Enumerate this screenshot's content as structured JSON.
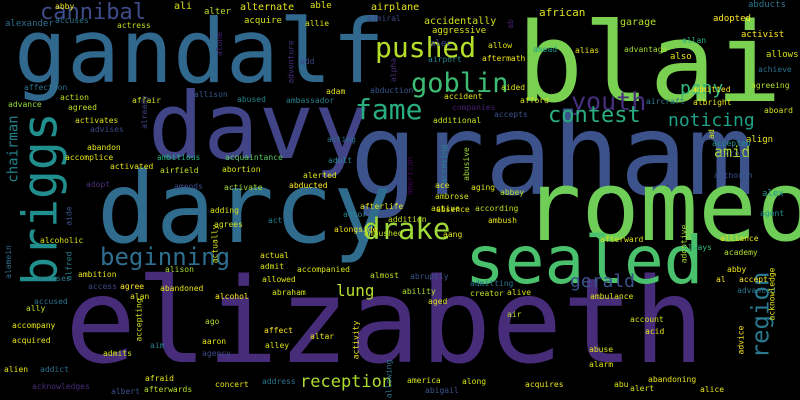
{
  "word_cloud": {
    "background": "#000000",
    "words": [
      {
        "text": "elizabeth",
        "color": "#472c7a"
      },
      {
        "text": "graham",
        "color": "#3b528b"
      },
      {
        "text": "gandalf",
        "color": "#31688e"
      },
      {
        "text": "blair",
        "color": "#7ad151"
      },
      {
        "text": "davy",
        "color": "#414487"
      },
      {
        "text": "darcy",
        "color": "#2f6c8e"
      },
      {
        "text": "romeo",
        "color": "#6ece58"
      },
      {
        "text": "sealed",
        "color": "#4ac16d"
      },
      {
        "text": "briggs",
        "color": "#218f8d"
      },
      {
        "text": "pushed",
        "color": "#b5de2b"
      },
      {
        "text": "fame",
        "color": "#29af7f"
      },
      {
        "text": "drake",
        "color": "#9fda3a"
      },
      {
        "text": "goblin",
        "color": "#3dbc74"
      },
      {
        "text": "youth",
        "color": "#46307e"
      },
      {
        "text": "contest",
        "color": "#2ab07f"
      },
      {
        "text": "beginning",
        "color": "#2e6e8e"
      },
      {
        "text": "region",
        "color": "#2a788e"
      },
      {
        "text": "cannibal",
        "color": "#3e4c8a"
      },
      {
        "text": "gerald",
        "color": "#3b528b"
      },
      {
        "text": "noticing",
        "color": "#1fa088"
      },
      {
        "text": "pony",
        "color": "#35b779"
      },
      {
        "text": "reception",
        "color": "#addc30"
      },
      {
        "text": "lung",
        "color": "#b5de2b"
      },
      {
        "text": "amid",
        "color": "#a8db34"
      },
      {
        "text": "chairman",
        "color": "#26828e"
      },
      {
        "text": "abby",
        "color": "#ece51b"
      },
      {
        "text": "alexander",
        "color": "#2d708e"
      },
      {
        "text": "ali",
        "color": "#d8e219"
      },
      {
        "text": "alter",
        "color": "#b8de29"
      },
      {
        "text": "alternate",
        "color": "#e5e419"
      },
      {
        "text": "able",
        "color": "#dde318"
      },
      {
        "text": "airplane",
        "color": "#e5e419"
      },
      {
        "text": "accidentally",
        "color": "#cde11d"
      },
      {
        "text": "african",
        "color": "#dde318"
      },
      {
        "text": "abducts",
        "color": "#2a768e"
      },
      {
        "text": "adopted",
        "color": "#fde725"
      },
      {
        "text": "activist",
        "color": "#fde725"
      },
      {
        "text": "allows",
        "color": "#d8e219"
      },
      {
        "text": "achieve",
        "color": "#2c728e"
      },
      {
        "text": "agreeing",
        "color": "#b5de2b"
      },
      {
        "text": "aboard",
        "color": "#d2e21b"
      },
      {
        "text": "align",
        "color": "#e5e419"
      },
      {
        "text": "alex",
        "color": "#1f988b"
      },
      {
        "text": "agent",
        "color": "#228d8d"
      },
      {
        "text": "actress",
        "color": "#bddf26"
      },
      {
        "text": "accuses",
        "color": "#2a778e"
      },
      {
        "text": "acquire",
        "color": "#d0e11c"
      },
      {
        "text": "admiral",
        "color": "#404688"
      },
      {
        "text": "aggressive",
        "color": "#d2e21b"
      },
      {
        "text": "alec",
        "color": "#3e4989"
      },
      {
        "text": "allow",
        "color": "#dde318"
      },
      {
        "text": "aftermath",
        "color": "#f1e51d"
      },
      {
        "text": "airport",
        "color": "#24868e"
      },
      {
        "text": "ahead",
        "color": "#1fa088"
      },
      {
        "text": "alias",
        "color": "#e5e419"
      },
      {
        "text": "advantage",
        "color": "#a0da39"
      },
      {
        "text": "garage",
        "color": "#b5de2b"
      },
      {
        "text": "also",
        "color": "#e7e419"
      },
      {
        "text": "allan",
        "color": "#29af7f"
      },
      {
        "text": "affection",
        "color": "#2c728e"
      },
      {
        "text": "action",
        "color": "#c2df23"
      },
      {
        "text": "advance",
        "color": "#95d840"
      },
      {
        "text": "agreed",
        "color": "#c2df23"
      },
      {
        "text": "activates",
        "color": "#d8e219"
      },
      {
        "text": "affair",
        "color": "#d2e21b"
      },
      {
        "text": "allison",
        "color": "#39568c"
      },
      {
        "text": "abused",
        "color": "#24868e"
      },
      {
        "text": "ambassador",
        "color": "#277f8e"
      },
      {
        "text": "adam",
        "color": "#e2e418"
      },
      {
        "text": "abduction",
        "color": "#39568c"
      },
      {
        "text": "accident",
        "color": "#dde318"
      },
      {
        "text": "companies",
        "color": "#481f70"
      },
      {
        "text": "additional",
        "color": "#c8e020"
      },
      {
        "text": "aided",
        "color": "#d8e219"
      },
      {
        "text": "accepts",
        "color": "#3a538b"
      },
      {
        "text": "afford",
        "color": "#d2e21b"
      },
      {
        "text": "admitted",
        "color": "#fde725"
      },
      {
        "text": "aircraft",
        "color": "#2a788e"
      },
      {
        "text": "albright",
        "color": "#e7e419"
      },
      {
        "text": "abandon",
        "color": "#e5e419"
      },
      {
        "text": "accomplice",
        "color": "#e5e419"
      },
      {
        "text": "advises",
        "color": "#3e4989"
      },
      {
        "text": "already",
        "color": "#414487"
      },
      {
        "text": "ambitious",
        "color": "#29af7f"
      },
      {
        "text": "acquaintance",
        "color": "#5ac864"
      },
      {
        "text": "acting",
        "color": "#2c718e"
      },
      {
        "text": "adult",
        "color": "#25858e"
      },
      {
        "text": "accepted",
        "color": "#20928c"
      },
      {
        "text": "across",
        "color": "#3e4989"
      },
      {
        "text": "although",
        "color": "#3b528b"
      },
      {
        "text": "activated",
        "color": "#e7e419"
      },
      {
        "text": "airfield",
        "color": "#bddf26"
      },
      {
        "text": "abortion",
        "color": "#d8e219"
      },
      {
        "text": "alerted",
        "color": "#d8e219"
      },
      {
        "text": "abducted",
        "color": "#fde725"
      },
      {
        "text": "abusive",
        "color": "#a0da39"
      },
      {
        "text": "accusing",
        "color": "#26828e"
      },
      {
        "text": "aging",
        "color": "#dde318"
      },
      {
        "text": "abbey",
        "color": "#b8de29"
      },
      {
        "text": "ace",
        "color": "#dde318"
      },
      {
        "text": "ambrose",
        "color": "#cde11d"
      },
      {
        "text": "adopt",
        "color": "#472d7b"
      },
      {
        "text": "amends",
        "color": "#3e4a89"
      },
      {
        "text": "activate",
        "color": "#a2da37"
      },
      {
        "text": "actor",
        "color": "#24868e"
      },
      {
        "text": "alongside",
        "color": "#f1e51d"
      },
      {
        "text": "addition",
        "color": "#c2df23"
      },
      {
        "text": "active",
        "color": "#d2e21b"
      },
      {
        "text": "absence",
        "color": "#e2e418"
      },
      {
        "text": "according",
        "color": "#c2df23"
      },
      {
        "text": "ambush",
        "color": "#e5e419"
      },
      {
        "text": "adoptive",
        "color": "#a8db34"
      },
      {
        "text": "always",
        "color": "#35b779"
      },
      {
        "text": "alliance",
        "color": "#e7e419"
      },
      {
        "text": "academy",
        "color": "#b5de2b"
      },
      {
        "text": "adding",
        "color": "#d8e219"
      },
      {
        "text": "agrees",
        "color": "#cde11d"
      },
      {
        "text": "act",
        "color": "#26828e"
      },
      {
        "text": "ambushed",
        "color": "#bddf26"
      },
      {
        "text": "aang",
        "color": "#dde318"
      },
      {
        "text": "american",
        "color": "#440154"
      },
      {
        "text": "afterward",
        "color": "#d2e21b"
      },
      {
        "text": "alcoholic",
        "color": "#d8e219"
      },
      {
        "text": "alamein",
        "color": "#2f6c8e"
      },
      {
        "text": "aide",
        "color": "#39558c"
      },
      {
        "text": "alfred",
        "color": "#277f8e"
      },
      {
        "text": "ambition",
        "color": "#e5e419"
      },
      {
        "text": "alison",
        "color": "#aadc32"
      },
      {
        "text": "actually",
        "color": "#d8e219"
      },
      {
        "text": "actual",
        "color": "#e2e418"
      },
      {
        "text": "admit",
        "color": "#d2e21b"
      },
      {
        "text": "accompanied",
        "color": "#d8e219"
      },
      {
        "text": "almost",
        "color": "#c2df23"
      },
      {
        "text": "abruptly",
        "color": "#3b528b"
      },
      {
        "text": "admitting",
        "color": "#2b748e"
      },
      {
        "text": "alive",
        "color": "#d8e219"
      },
      {
        "text": "abby_2",
        "color": "#ece51b"
      },
      {
        "text": "accept",
        "color": "#fde725"
      },
      {
        "text": "advanced",
        "color": "#2a768e"
      },
      {
        "text": "acknowledge",
        "color": "#e5e419"
      },
      {
        "text": "accuses_2",
        "color": "#2a778e"
      },
      {
        "text": "accused",
        "color": "#2c728e"
      },
      {
        "text": "access",
        "color": "#3e4989"
      },
      {
        "text": "agree",
        "color": "#fde725"
      },
      {
        "text": "alan",
        "color": "#dde318"
      },
      {
        "text": "allowed",
        "color": "#d8e219"
      },
      {
        "text": "abraham",
        "color": "#d2e21b"
      },
      {
        "text": "ability",
        "color": "#addc30"
      },
      {
        "text": "aged",
        "color": "#d8e219"
      },
      {
        "text": "creator",
        "color": "#c2df23"
      },
      {
        "text": "ambulance",
        "color": "#dde318"
      },
      {
        "text": "al",
        "color": "#fde725"
      },
      {
        "text": "abandoned",
        "color": "#e7e419"
      },
      {
        "text": "alcohol",
        "color": "#fde725"
      },
      {
        "text": "air",
        "color": "#b5de2b"
      },
      {
        "text": "account",
        "color": "#d2e21b"
      },
      {
        "text": "acid",
        "color": "#e5e419"
      },
      {
        "text": "ally",
        "color": "#c2df23"
      },
      {
        "text": "ago",
        "color": "#addc30"
      },
      {
        "text": "affect",
        "color": "#fde725"
      },
      {
        "text": "altar",
        "color": "#e5e419"
      },
      {
        "text": "accompany",
        "color": "#e5e419"
      },
      {
        "text": "acquired",
        "color": "#e5e419"
      },
      {
        "text": "aim",
        "color": "#26828e"
      },
      {
        "text": "accepting",
        "color": "#d2e21b"
      },
      {
        "text": "aaron",
        "color": "#e5e419"
      },
      {
        "text": "agency",
        "color": "#3e4c8a"
      },
      {
        "text": "alley",
        "color": "#d8e219"
      },
      {
        "text": "activity",
        "color": "#f1e51d"
      },
      {
        "text": "abuse",
        "color": "#d8e219"
      },
      {
        "text": "alarm",
        "color": "#e7e419"
      },
      {
        "text": "advice",
        "color": "#fde725"
      },
      {
        "text": "admits",
        "color": "#d2e21b"
      },
      {
        "text": "alien",
        "color": "#e5e419"
      },
      {
        "text": "addict",
        "color": "#2c718e"
      },
      {
        "text": "america",
        "color": "#d2e21b"
      },
      {
        "text": "along",
        "color": "#d8e219"
      },
      {
        "text": "abu",
        "color": "#d8e219"
      },
      {
        "text": "abandoning",
        "color": "#e7e419"
      },
      {
        "text": "alert",
        "color": "#d2e21b"
      },
      {
        "text": "alice",
        "color": "#e5e419"
      },
      {
        "text": "acknowledges",
        "color": "#472d7b"
      },
      {
        "text": "albert",
        "color": "#3b528b"
      },
      {
        "text": "afraid",
        "color": "#e5e419"
      },
      {
        "text": "afterwards",
        "color": "#b8de29"
      },
      {
        "text": "concert",
        "color": "#e2e418"
      },
      {
        "text": "address",
        "color": "#2a768e"
      },
      {
        "text": "abigail",
        "color": "#3b528b"
      },
      {
        "text": "acquires",
        "color": "#e5e419"
      },
      {
        "text": "afterlife",
        "color": "#e5e419"
      },
      {
        "text": "allie",
        "color": "#d8e219"
      },
      {
        "text": "alone",
        "color": "#482173"
      },
      {
        "text": "adventure",
        "color": "#46327e"
      },
      {
        "text": "add",
        "color": "#3e4989"
      },
      {
        "text": "ab",
        "color": "#481f70"
      },
      {
        "text": "alpha",
        "color": "#472d7b"
      },
      {
        "text": "ad",
        "color": "#d8e219"
      },
      {
        "text": "allowing",
        "color": "#2c728e"
      }
    ]
  }
}
